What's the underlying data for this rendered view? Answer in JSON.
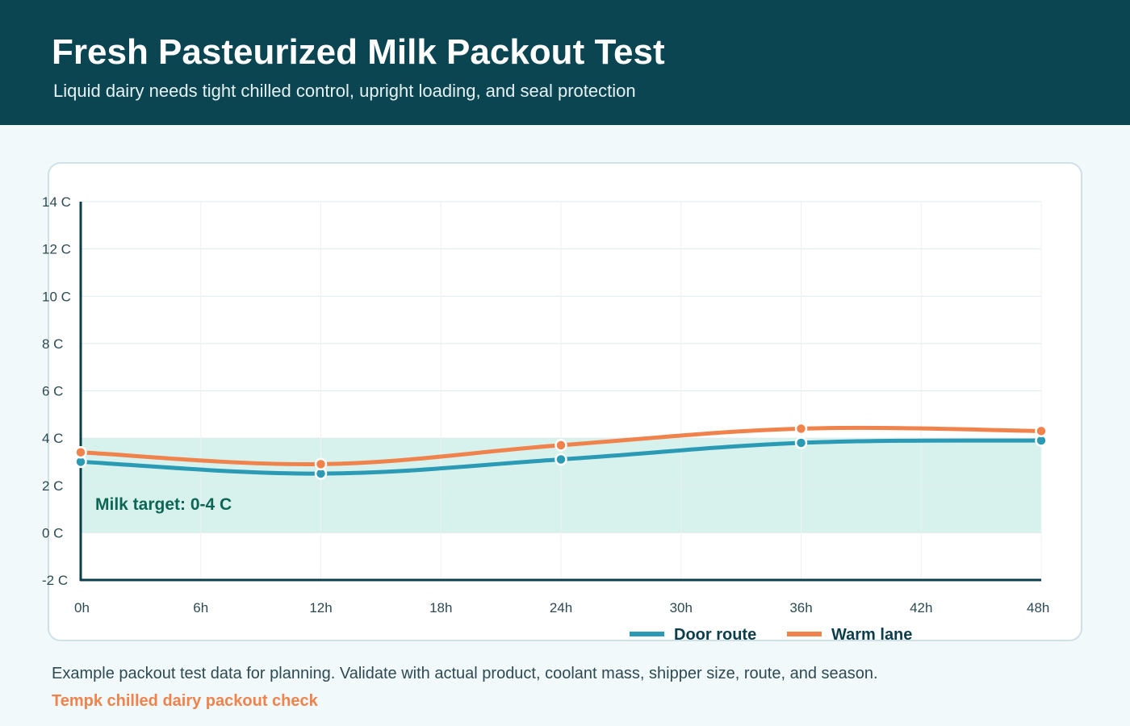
{
  "header": {
    "title": "Fresh Pasteurized Milk Packout Test",
    "subtitle": "Liquid dairy needs tight chilled control, upright loading, and seal protection"
  },
  "footer": {
    "note": "Example packout test data for planning. Validate with actual product, coolant mass, shipper size, route, and season.",
    "brand": "Tempk chilled dairy packout check"
  },
  "colors": {
    "header_bg": "#0c4552",
    "door_route": "#2a9ab5",
    "warm_lane": "#f0824c",
    "target_band": "#d7f2ed",
    "brand": "#f0824c"
  },
  "chart_data": {
    "type": "line",
    "title": "",
    "xlabel": "",
    "ylabel": "",
    "x": [
      0,
      12,
      24,
      36,
      48
    ],
    "x_ticks": [
      0,
      6,
      12,
      18,
      24,
      30,
      36,
      42,
      48
    ],
    "x_tick_labels": [
      "0h",
      "6h",
      "12h",
      "18h",
      "24h",
      "30h",
      "36h",
      "42h",
      "48h"
    ],
    "xlim": [
      0,
      48
    ],
    "y_ticks": [
      -2,
      0,
      2,
      4,
      6,
      8,
      10,
      12,
      14
    ],
    "y_tick_labels": [
      "-2 C",
      "0 C",
      "2 C",
      "4 C",
      "6 C",
      "8 C",
      "10 C",
      "12 C",
      "14 C"
    ],
    "ylim": [
      -2,
      14
    ],
    "grid": true,
    "legend": "bottom-right",
    "series": [
      {
        "name": "Door route",
        "values": [
          3.0,
          2.5,
          3.1,
          3.8,
          3.9
        ]
      },
      {
        "name": "Warm lane",
        "values": [
          3.4,
          2.9,
          3.7,
          4.4,
          4.3
        ]
      }
    ],
    "annotations": [
      {
        "type": "band",
        "y_from": 0,
        "y_to": 4,
        "label": "Milk target: 0-4 C"
      }
    ]
  }
}
